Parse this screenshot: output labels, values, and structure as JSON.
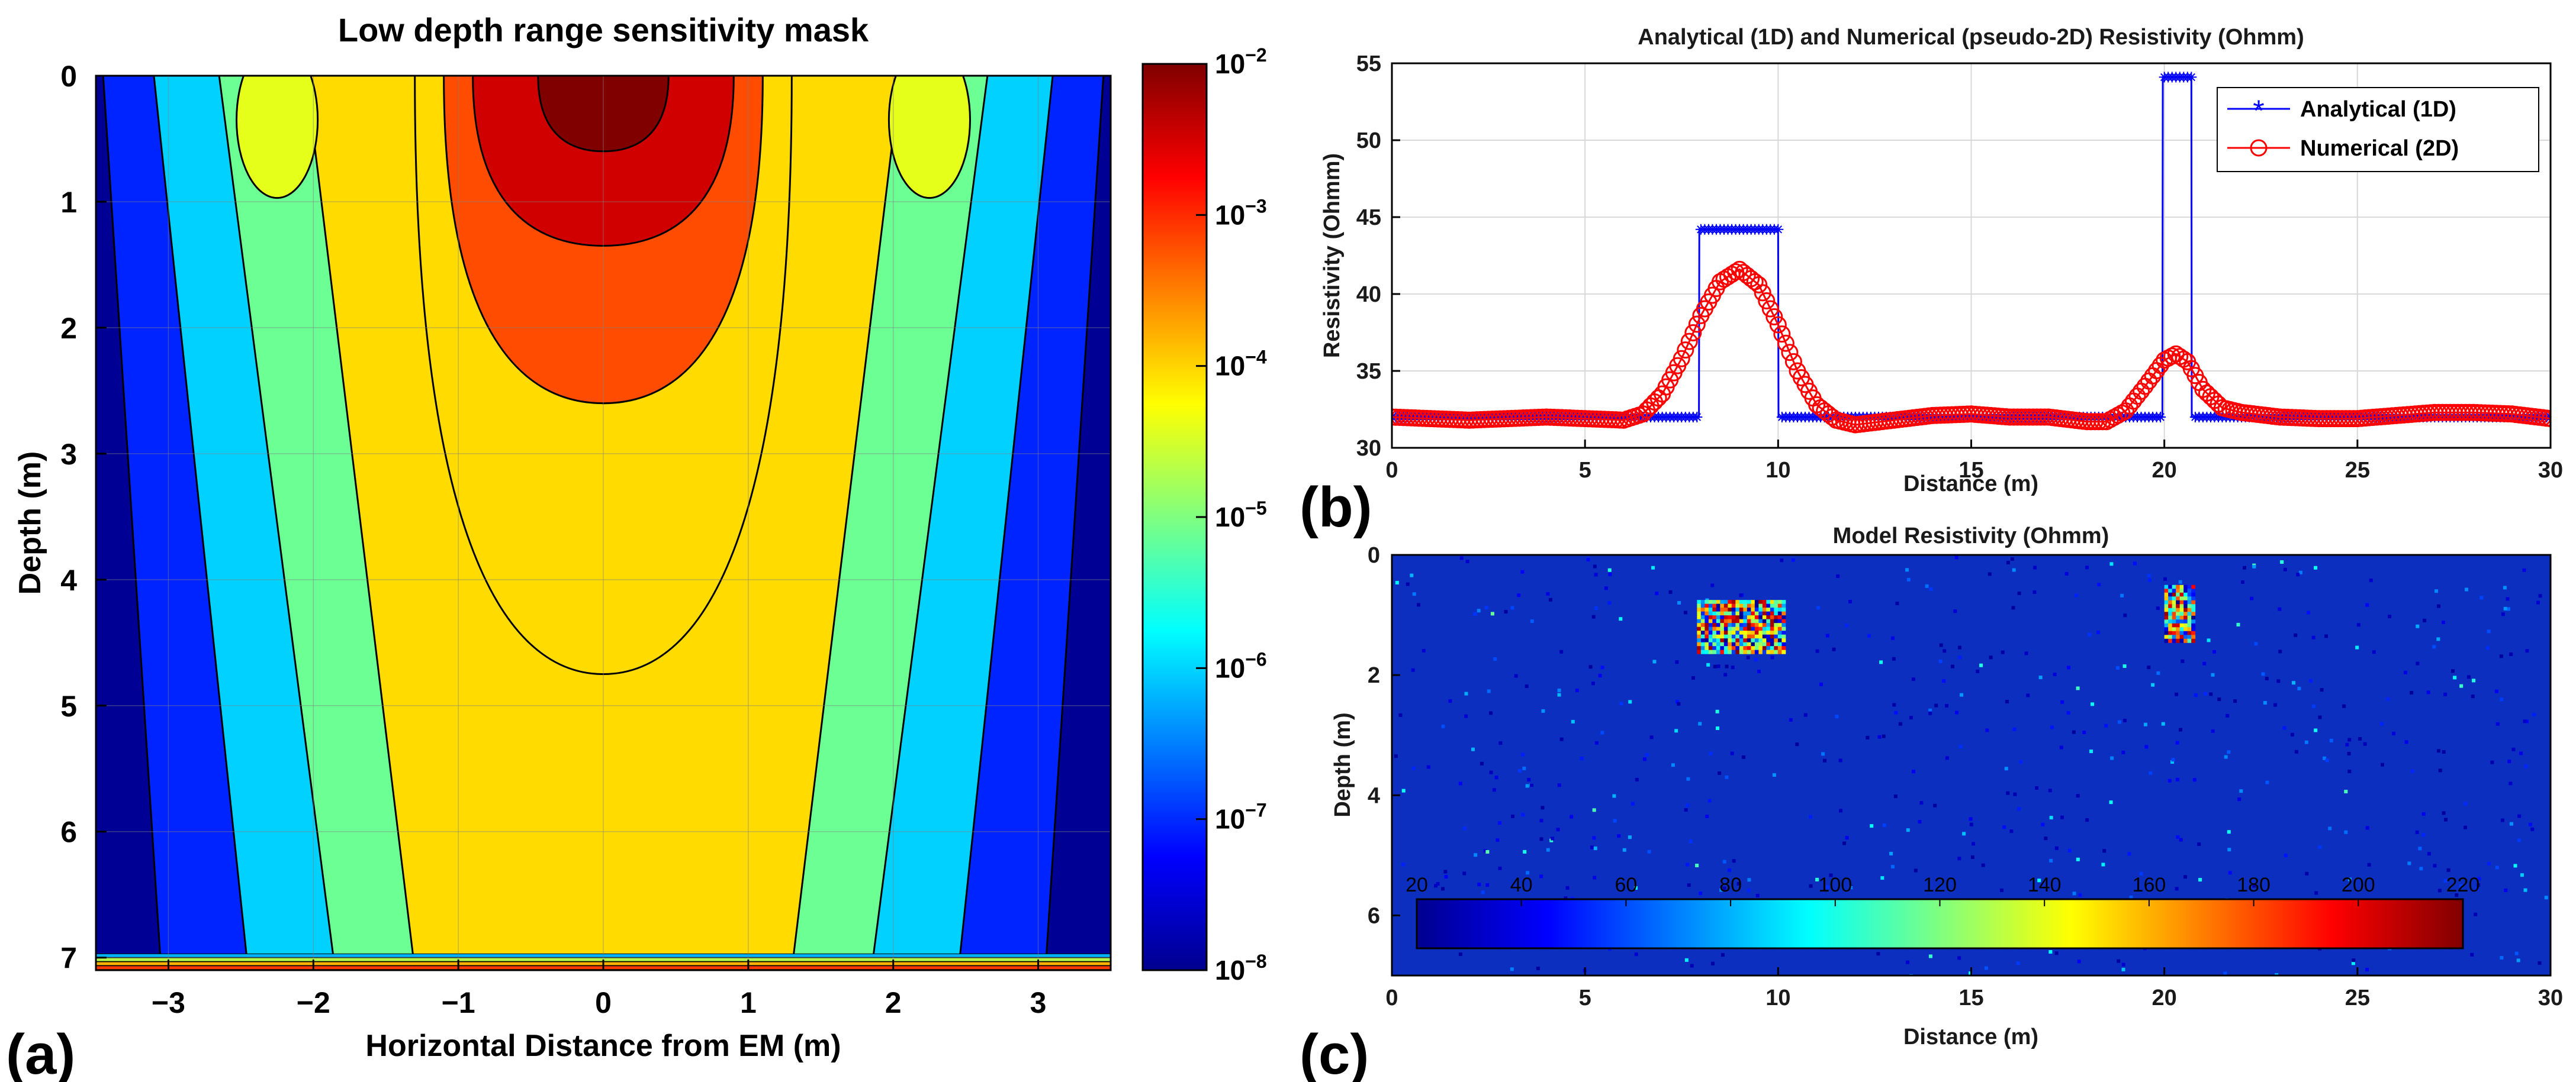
{
  "chart_data": [
    {
      "panel": "(a)",
      "type": "heatmap",
      "subtype": "filled-contour",
      "title": "Low depth range sensitivity mask",
      "xlabel": "Horizontal Distance from EM (m)",
      "ylabel": "Depth (m)",
      "xlim": [
        -3.5,
        3.5
      ],
      "ylim": [
        0,
        7.1
      ],
      "y_reversed": true,
      "xticks": [
        -3,
        -2,
        -1,
        0,
        1,
        2,
        3
      ],
      "xtick_labels": [
        "−3",
        "−2",
        "−1",
        "0",
        "1",
        "2",
        "3"
      ],
      "yticks": [
        0,
        1,
        2,
        3,
        4,
        5,
        6,
        7
      ],
      "ytick_labels": [
        "0",
        "1",
        "2",
        "3",
        "4",
        "5",
        "6",
        "7"
      ],
      "grid": true,
      "colormap": "jet",
      "colorbar": {
        "scale": "log",
        "range": [
          1e-08,
          0.01
        ],
        "ticks": [
          {
            "base": "10",
            "exp": "−2"
          },
          {
            "base": "10",
            "exp": "−3"
          },
          {
            "base": "10",
            "exp": "−4"
          },
          {
            "base": "10",
            "exp": "−5"
          },
          {
            "base": "10",
            "exp": "−6"
          },
          {
            "base": "10",
            "exp": "−7"
          },
          {
            "base": "10",
            "exp": "−8"
          }
        ]
      },
      "contour_depth_at_center": {
        "1e-2": 0.6,
        "1e-3": 1.35,
        "1e-4": 2.6,
        "1e-5": 4.75
      }
    },
    {
      "panel": "(b)",
      "type": "line",
      "title": "Analytical (1D) and Numerical (pseudo-2D) Resistivity (Ohmm)",
      "xlabel": "Distance (m)",
      "ylabel": "Resistivity (Ohmm)",
      "xlim": [
        0,
        30
      ],
      "ylim": [
        30,
        55
      ],
      "xticks": [
        0,
        5,
        10,
        15,
        20,
        25,
        30
      ],
      "yticks": [
        30,
        35,
        40,
        45,
        50,
        55
      ],
      "grid": true,
      "legend_position": "top-right",
      "series": [
        {
          "name": "Analytical (1D)",
          "color": "#0000ff",
          "marker": "asterisk",
          "x": [
            0.0,
            7.95,
            7.96,
            10.0,
            10.01,
            19.95,
            19.96,
            20.7,
            20.71,
            30.0
          ],
          "y": [
            32.0,
            32.0,
            44.2,
            44.2,
            32.0,
            32.0,
            54.1,
            54.1,
            32.0,
            32.0
          ]
        },
        {
          "name": "Numerical (2D)",
          "color": "#ff0000",
          "marker": "circle",
          "x": [
            0,
            1,
            2,
            3,
            4,
            5,
            6,
            6.5,
            7,
            7.5,
            8,
            8.5,
            9,
            9.5,
            10,
            10.5,
            11,
            11.5,
            12,
            13,
            14,
            15,
            16,
            17,
            18,
            18.5,
            19,
            19.5,
            20,
            20.3,
            20.6,
            21,
            21.5,
            22,
            23,
            24,
            25,
            26,
            27,
            28,
            29,
            30
          ],
          "y": [
            32.0,
            31.9,
            31.8,
            31.9,
            32.0,
            31.9,
            31.8,
            32.2,
            33.5,
            35.8,
            38.6,
            40.8,
            41.6,
            40.6,
            38.0,
            35.0,
            32.8,
            31.8,
            31.5,
            31.8,
            32.1,
            32.2,
            32.0,
            32.0,
            31.7,
            31.7,
            32.4,
            34.0,
            35.7,
            36.1,
            35.6,
            33.8,
            32.6,
            32.3,
            32.0,
            31.9,
            31.9,
            32.1,
            32.3,
            32.3,
            32.2,
            31.9
          ]
        }
      ]
    },
    {
      "panel": "(c)",
      "type": "heatmap",
      "title": "Model Resistivity (Ohmm)",
      "xlabel": "Distance (m)",
      "ylabel": "Depth (m)",
      "xlim": [
        0,
        30
      ],
      "ylim": [
        0,
        7
      ],
      "y_reversed": true,
      "xticks": [
        0,
        5,
        10,
        15,
        20,
        25,
        30
      ],
      "yticks": [
        0,
        2,
        4,
        6
      ],
      "colormap": "jet",
      "colorbar": {
        "orientation": "horizontal",
        "position": "inside-bottom",
        "range": [
          20,
          220
        ],
        "ticks": [
          20,
          40,
          60,
          80,
          100,
          120,
          140,
          160,
          180,
          200,
          220
        ]
      },
      "background_value": 32,
      "anomalies": [
        {
          "x_range": [
            7.9,
            10.1
          ],
          "depth_range": [
            0.75,
            1.6
          ],
          "value": 44.2
        },
        {
          "x_range": [
            20.0,
            20.7
          ],
          "depth_range": [
            0.5,
            1.45
          ],
          "value": 54.1
        }
      ]
    }
  ],
  "panel_labels": [
    "(a)",
    "(b)",
    "(c)"
  ]
}
